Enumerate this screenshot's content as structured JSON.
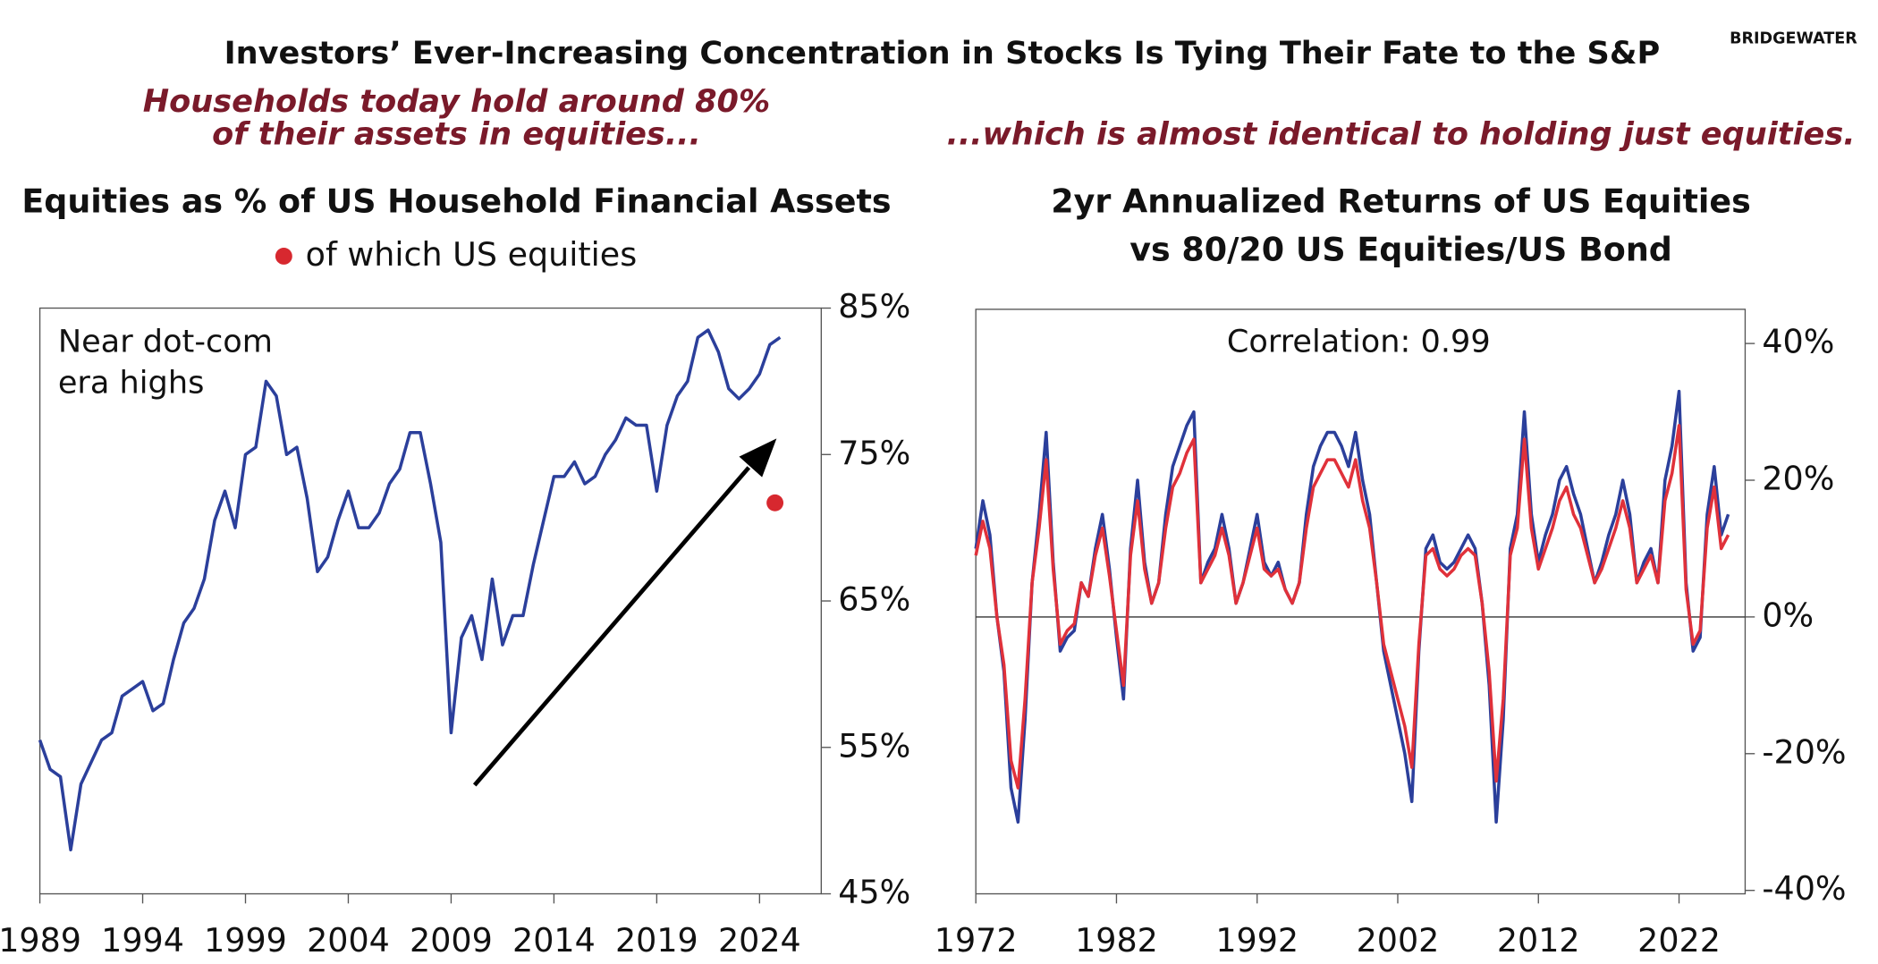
{
  "header": {
    "title": "Investors’ Ever-Increasing Concentration in Stocks Is Tying Their Fate to the S&P",
    "logo": "BRIDGEWATER"
  },
  "chart_data": [
    {
      "type": "line",
      "headline": [
        "Households today hold around 80%",
        "of their assets in equities..."
      ],
      "title": [
        "Equities as % of US Household Financial Assets"
      ],
      "annotation": [
        "Near dot-com",
        "era highs"
      ],
      "x": [
        1989,
        1989.5,
        1990,
        1990.5,
        1991,
        1991.5,
        1992,
        1992.5,
        1993,
        1993.5,
        1994,
        1994.5,
        1995,
        1995.5,
        1996,
        1996.5,
        1997,
        1997.5,
        1998,
        1998.5,
        1999,
        1999.5,
        2000,
        2000.5,
        2001,
        2001.5,
        2002,
        2002.5,
        2003,
        2003.5,
        2004,
        2004.5,
        2005,
        2005.5,
        2006,
        2006.5,
        2007,
        2007.5,
        2008,
        2008.5,
        2009,
        2009.5,
        2010,
        2010.5,
        2011,
        2011.5,
        2012,
        2012.5,
        2013,
        2013.5,
        2014,
        2014.5,
        2015,
        2015.5,
        2016,
        2016.5,
        2017,
        2017.5,
        2018,
        2018.5,
        2019,
        2019.5,
        2020,
        2020.5,
        2021,
        2021.5,
        2022,
        2022.5,
        2023,
        2023.5,
        2024,
        2024.5,
        2025
      ],
      "series": [
        {
          "color": "#2b3f9b",
          "values": [
            55.5,
            53.5,
            53,
            48,
            52.5,
            54,
            55.5,
            56,
            58.5,
            59,
            59.5,
            57.5,
            58,
            61,
            63.5,
            64.5,
            66.5,
            70.5,
            72.5,
            70,
            75,
            75.5,
            80,
            79,
            75,
            75.5,
            72,
            67,
            68,
            70.5,
            72.5,
            70,
            70,
            71,
            73,
            74,
            76.5,
            76.5,
            73,
            69,
            56,
            62.5,
            64,
            61,
            66.5,
            62,
            64,
            64,
            67.5,
            70.5,
            73.5,
            73.5,
            74.5,
            73,
            73.5,
            75,
            76,
            77.5,
            77,
            77,
            72.5,
            77,
            79,
            80,
            83,
            83.5,
            82,
            79.5,
            78.8,
            79.5,
            80.5,
            82.5,
            83
          ]
        },
        {
          "name": "of which US equities",
          "color": "#d7282f",
          "marker": "dot",
          "x": [
            2024.75
          ],
          "values": [
            71.7
          ]
        }
      ],
      "xlim": [
        1989,
        2027
      ],
      "xticks": [
        1989,
        1994,
        1999,
        2004,
        2009,
        2014,
        2019,
        2024
      ],
      "ylim": [
        45,
        85
      ],
      "yticks": [
        {
          "value": 45,
          "label": "45%"
        },
        {
          "value": 55,
          "label": "55%"
        },
        {
          "value": 65,
          "label": "65%"
        },
        {
          "value": 75,
          "label": "75%"
        },
        {
          "value": 85,
          "label": "85%"
        }
      ],
      "y_axis_side": "right",
      "zero_line": false
    },
    {
      "type": "line",
      "headline": [
        "...which is almost identical to holding just equities."
      ],
      "title": [
        "2yr Annualized Returns of US Equities",
        "vs 80/20 US Equities/US Bond"
      ],
      "annotation": [
        "Correlation: 0.99"
      ],
      "x": [
        1972,
        1972.5,
        1973,
        1973.5,
        1974,
        1974.5,
        1975,
        1975.5,
        1976,
        1976.5,
        1977,
        1977.5,
        1978,
        1978.5,
        1979,
        1979.5,
        1980,
        1980.5,
        1981,
        1981.5,
        1982,
        1982.5,
        1983,
        1983.5,
        1984,
        1984.5,
        1985,
        1985.5,
        1986,
        1986.5,
        1987,
        1987.5,
        1988,
        1988.5,
        1989,
        1989.5,
        1990,
        1990.5,
        1991,
        1991.5,
        1992,
        1992.5,
        1993,
        1993.5,
        1994,
        1994.5,
        1995,
        1995.5,
        1996,
        1996.5,
        1997,
        1997.5,
        1998,
        1998.5,
        1999,
        1999.5,
        2000,
        2000.5,
        2001,
        2001.5,
        2002,
        2002.5,
        2003,
        2003.5,
        2004,
        2004.5,
        2005,
        2005.5,
        2006,
        2006.5,
        2007,
        2007.5,
        2008,
        2008.5,
        2009,
        2009.5,
        2010,
        2010.5,
        2011,
        2011.5,
        2012,
        2012.5,
        2013,
        2013.5,
        2014,
        2014.5,
        2015,
        2015.5,
        2016,
        2016.5,
        2017,
        2017.5,
        2018,
        2018.5,
        2019,
        2019.5,
        2020,
        2020.5,
        2021,
        2021.5,
        2022,
        2022.5,
        2023,
        2023.5,
        2024,
        2024.5,
        2025,
        2025.5
      ],
      "series": [
        {
          "color": "#2b3f9b",
          "values": [
            10,
            17,
            12,
            0,
            -8,
            -25,
            -30,
            -15,
            5,
            15,
            27,
            8,
            -5,
            -3,
            -2,
            5,
            3,
            10,
            15,
            7,
            -3,
            -12,
            10,
            20,
            8,
            2,
            5,
            15,
            22,
            25,
            28,
            30,
            5,
            8,
            10,
            15,
            10,
            2,
            5,
            10,
            15,
            8,
            6,
            8,
            4,
            2,
            5,
            15,
            22,
            25,
            27,
            27,
            25,
            22,
            27,
            20,
            15,
            5,
            -5,
            -10,
            -15,
            -20,
            -27,
            -5,
            10,
            12,
            8,
            7,
            8,
            10,
            12,
            10,
            2,
            -10,
            -30,
            -15,
            10,
            15,
            30,
            15,
            8,
            12,
            15,
            20,
            22,
            18,
            15,
            10,
            5,
            8,
            12,
            15,
            20,
            15,
            5,
            8,
            10,
            5,
            20,
            25,
            33,
            5,
            -5,
            -3,
            15,
            22,
            12,
            15
          ]
        },
        {
          "color": "#e0313a",
          "values": [
            9,
            14,
            10,
            0,
            -7,
            -21,
            -25,
            -12,
            5,
            13,
            23,
            7,
            -4,
            -2,
            -1,
            5,
            3,
            9,
            13,
            6,
            -2,
            -10,
            9,
            17,
            7,
            2,
            5,
            13,
            19,
            21,
            24,
            26,
            5,
            7,
            9,
            13,
            9,
            2,
            5,
            9,
            13,
            7,
            6,
            7,
            4,
            2,
            5,
            13,
            19,
            21,
            23,
            23,
            21,
            19,
            23,
            17,
            13,
            5,
            -4,
            -8,
            -12,
            -16,
            -22,
            -4,
            9,
            10,
            7,
            6,
            7,
            9,
            10,
            9,
            2,
            -8,
            -24,
            -12,
            9,
            13,
            26,
            13,
            7,
            10,
            13,
            17,
            19,
            15,
            13,
            9,
            5,
            7,
            10,
            13,
            17,
            13,
            5,
            7,
            9,
            5,
            17,
            21,
            28,
            4,
            -4,
            -2,
            13,
            19,
            10,
            12
          ]
        }
      ],
      "xlim": [
        1972,
        2026.7
      ],
      "xticks": [
        1972,
        1982,
        1992,
        2002,
        2012,
        2022
      ],
      "ylim": [
        -40.5,
        45
      ],
      "yticks": [
        {
          "value": -40,
          "label": "-40%"
        },
        {
          "value": -20,
          "label": "-20%"
        },
        {
          "value": 0,
          "label": "0%"
        },
        {
          "value": 20,
          "label": "20%"
        },
        {
          "value": 40,
          "label": "40%"
        }
      ],
      "y_axis_side": "right",
      "zero_line": true
    }
  ]
}
